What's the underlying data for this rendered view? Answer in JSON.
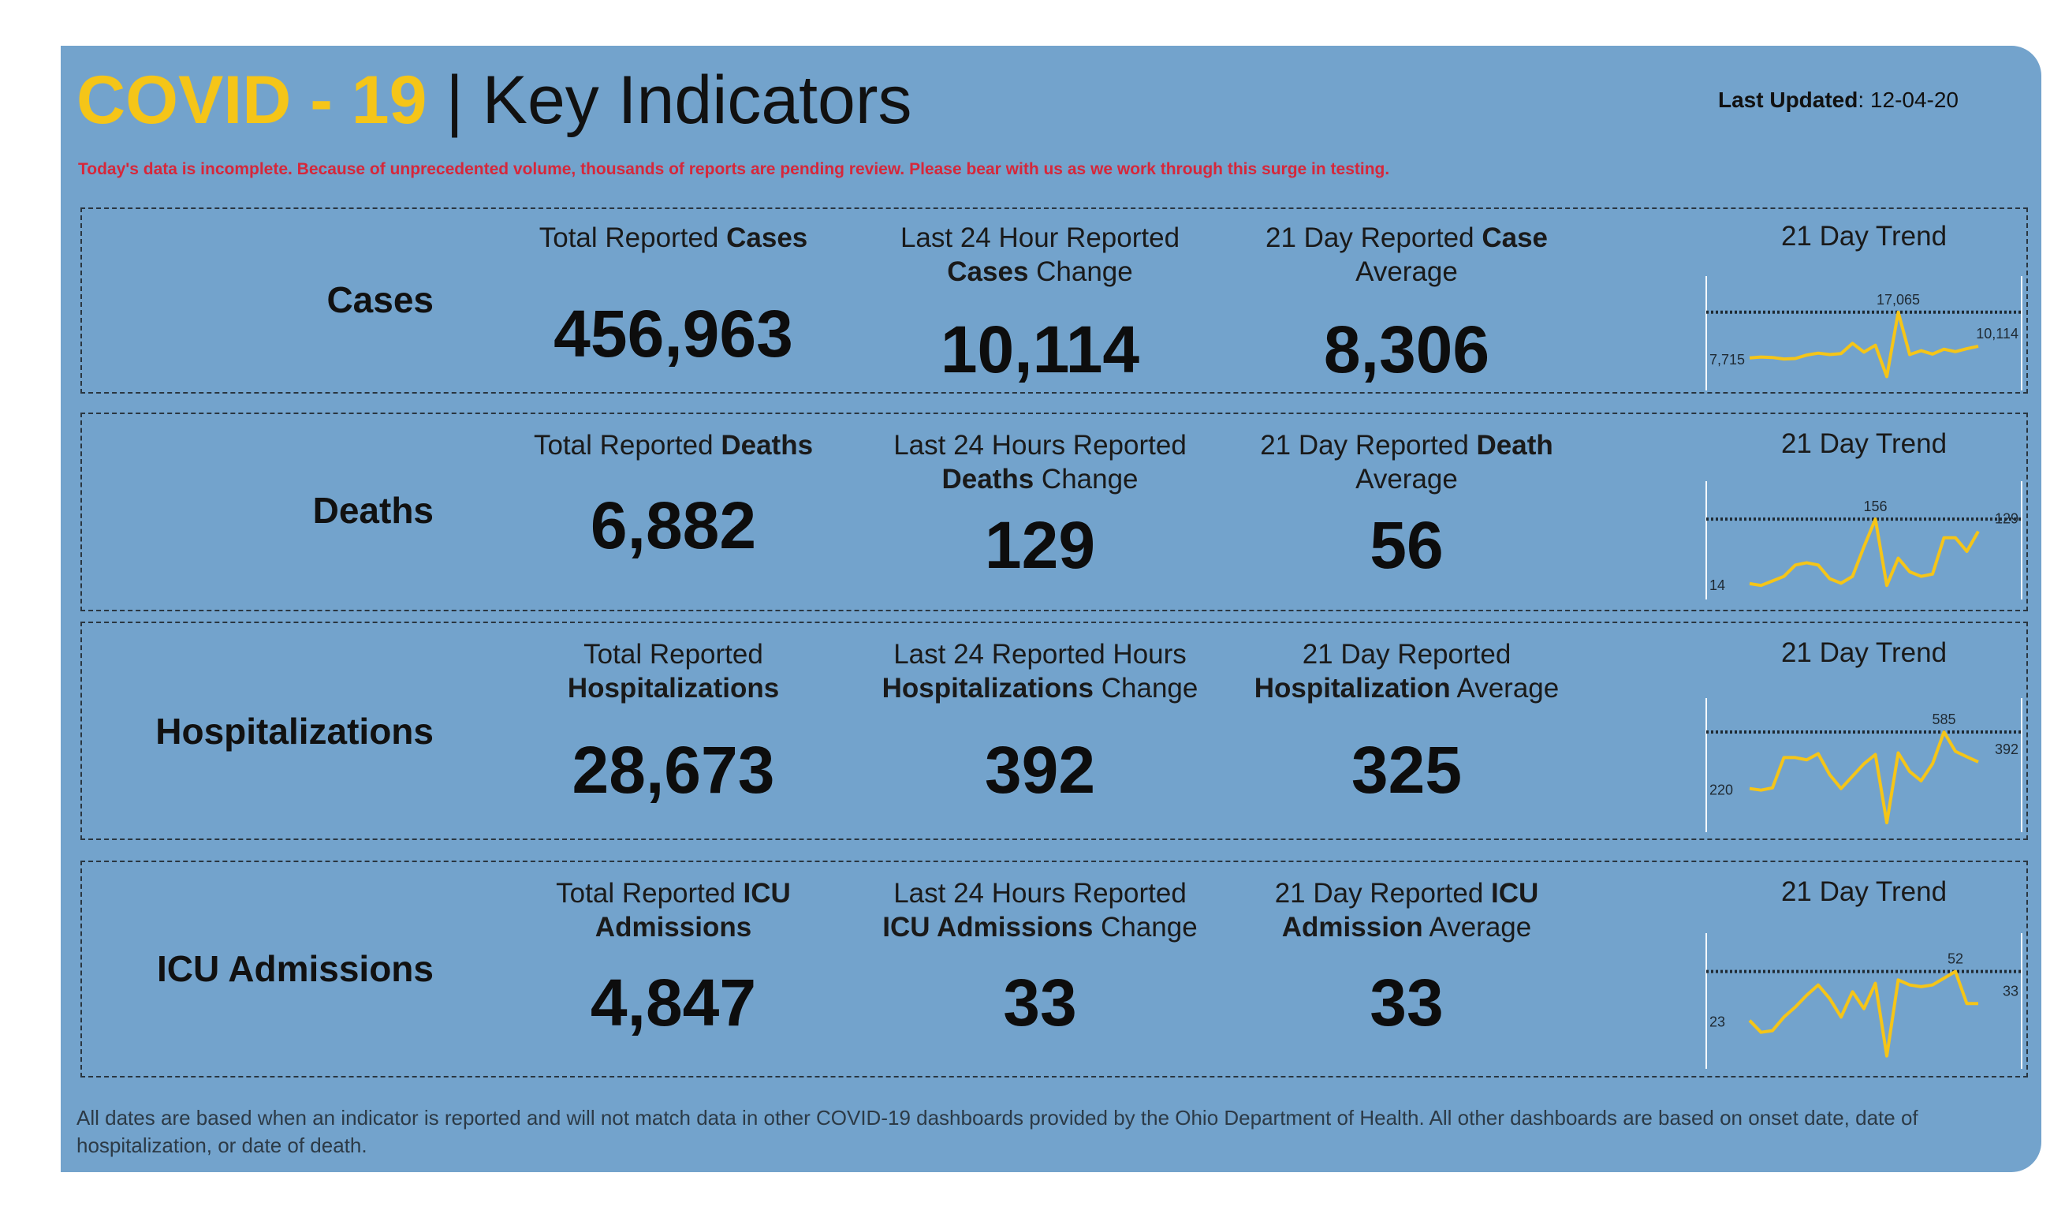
{
  "header": {
    "title_accent": "COVID - 19",
    "title_rest": " | Key Indicators",
    "last_updated_label": "Last Updated",
    "last_updated_value": ": 12-04-20",
    "warning": "Today's data is incomplete. Because of unprecedented volume, thousands of reports are pending review. Please bear with us as we work through this surge in testing."
  },
  "rows": [
    {
      "label": "Cases",
      "total": {
        "pre": "Total Reported ",
        "bold": "Cases",
        "line2": "",
        "value": "456,963"
      },
      "change": {
        "line1": "Last 24 Hour Reported",
        "bold": "Cases",
        "post": " Change",
        "value": "10,114"
      },
      "average": {
        "pre": "21 Day Reported ",
        "bold": "Case",
        "line2": "Average",
        "value": "8,306"
      },
      "trend_title": "21 Day Trend"
    },
    {
      "label": "Deaths",
      "total": {
        "pre": "Total Reported ",
        "bold": "Deaths",
        "line2": "",
        "value": "6,882"
      },
      "change": {
        "line1": "Last 24 Hours Reported",
        "bold": "Deaths",
        "post": " Change",
        "value": "129"
      },
      "average": {
        "pre": "21 Day Reported ",
        "bold": "Death",
        "line2": "Average",
        "value": "56"
      },
      "trend_title": "21 Day Trend"
    },
    {
      "label": "Hospitalizations",
      "total": {
        "pre": "Total Reported",
        "bold": "",
        "line2": "Hospitalizations",
        "value": "28,673"
      },
      "change": {
        "line1": "Last 24 Reported Hours",
        "bold": "Hospitalizations",
        "post": " Change",
        "value": "392"
      },
      "average": {
        "pre": "21 Day Reported",
        "bold": "",
        "line2b": "Hospitalization",
        "line2": " Average",
        "value": "325"
      },
      "trend_title": "21 Day Trend"
    },
    {
      "label": "ICU Admissions",
      "total": {
        "pre": "Total Reported ",
        "bold": "ICU",
        "line2": "Admissions",
        "value": "4,847"
      },
      "change": {
        "line1": "Last 24 Hours Reported",
        "bold": "ICU Admissions",
        "post": " Change",
        "value": "33"
      },
      "average": {
        "pre": "21 Day Reported ",
        "bold": "ICU",
        "line2b": "Admission",
        "line2": " Average",
        "value": "33"
      },
      "trend_title": "21 Day Trend"
    }
  ],
  "footer": "All dates are based when an indicator is reported and will not match data in other COVID-19 dashboards provided by the Ohio Department of Health. All other dashboards are based on onset date, date of hospitalization, or date of death.",
  "colors": {
    "accent": "#f5c518",
    "panel": "#73a3cc",
    "warning": "#d6273a",
    "trend_line": "#f5c518"
  },
  "chart_data": [
    {
      "type": "line",
      "name": "Cases 21 Day Trend",
      "x": [
        1,
        2,
        3,
        4,
        5,
        6,
        7,
        8,
        9,
        10,
        11,
        12,
        13,
        14,
        15,
        16,
        17,
        18,
        19,
        20,
        21
      ],
      "values": [
        7715,
        7900,
        7800,
        7500,
        7600,
        8300,
        8700,
        8400,
        8600,
        10700,
        8900,
        10300,
        3900,
        17065,
        8400,
        9200,
        8500,
        9500,
        9000,
        9600,
        10114
      ],
      "max_label": "17,065",
      "first_label": "7,715",
      "last_label": "10,114",
      "ylim": [
        3000,
        18000
      ]
    },
    {
      "type": "line",
      "name": "Deaths 21 Day Trend",
      "x": [
        1,
        2,
        3,
        4,
        5,
        6,
        7,
        8,
        9,
        10,
        11,
        12,
        13,
        14,
        15,
        16,
        17,
        18,
        19,
        20,
        21
      ],
      "values": [
        14,
        10,
        20,
        30,
        55,
        60,
        55,
        25,
        15,
        30,
        95,
        156,
        10,
        70,
        40,
        30,
        35,
        115,
        115,
        85,
        129
      ],
      "max_label": "156",
      "first_label": "14",
      "last_label": "129",
      "ylim": [
        0,
        170
      ]
    },
    {
      "type": "line",
      "name": "Hospitalizations 21 Day Trend",
      "x": [
        1,
        2,
        3,
        4,
        5,
        6,
        7,
        8,
        9,
        10,
        11,
        12,
        13,
        14,
        15,
        16,
        17,
        18,
        19,
        20,
        21
      ],
      "values": [
        220,
        210,
        225,
        420,
        420,
        405,
        445,
        310,
        220,
        300,
        380,
        440,
        0,
        450,
        330,
        270,
        380,
        585,
        460,
        425,
        392
      ],
      "max_label": "585",
      "first_label": "220",
      "last_label": "392",
      "ylim": [
        0,
        600
      ]
    },
    {
      "type": "line",
      "name": "ICU Admissions 21 Day Trend",
      "x": [
        1,
        2,
        3,
        4,
        5,
        6,
        7,
        8,
        9,
        10,
        11,
        12,
        13,
        14,
        15,
        16,
        17,
        18,
        19,
        20,
        21
      ],
      "values": [
        23,
        16,
        17,
        25,
        31,
        38,
        44,
        36,
        25,
        40,
        30,
        45,
        2,
        47,
        44,
        43,
        44,
        48,
        52,
        33,
        33
      ],
      "max_label": "52",
      "first_label": "23",
      "last_label": "33",
      "ylim": [
        0,
        56
      ]
    }
  ]
}
